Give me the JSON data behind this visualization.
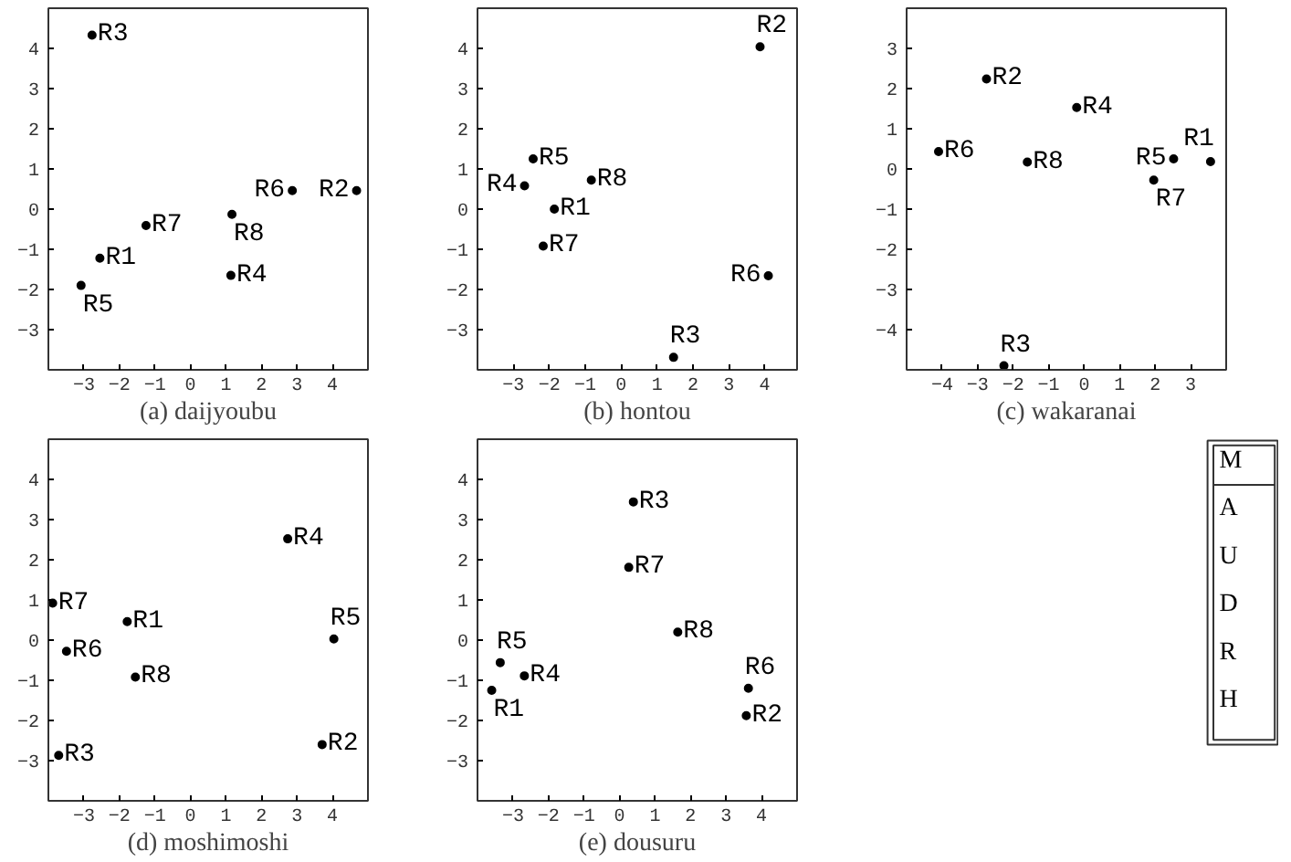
{
  "chart_data": [
    {
      "type": "scatter",
      "xlabel": "(a) daijyoubu",
      "xlim": [
        -4,
        5
      ],
      "ylim": [
        -4,
        5
      ],
      "xticks": [
        -3,
        -2,
        -1,
        0,
        1,
        2,
        3,
        4
      ],
      "yticks": [
        -3,
        -2,
        -1,
        0,
        1,
        2,
        3,
        4
      ],
      "marker": "circle",
      "series": [
        {
          "name": "R1",
          "color": "#000000",
          "x": [
            -2.55
          ],
          "values": [
            -1.22
          ]
        },
        {
          "name": "R2",
          "color": "#000000",
          "x": [
            4.68
          ],
          "values": [
            0.46
          ]
        },
        {
          "name": "R3",
          "color": "#000000",
          "x": [
            -2.77
          ],
          "values": [
            4.33
          ]
        },
        {
          "name": "R4",
          "color": "#000000",
          "x": [
            1.14
          ],
          "values": [
            -1.65
          ]
        },
        {
          "name": "R5",
          "color": "#000000",
          "x": [
            -3.08
          ],
          "values": [
            -1.9
          ]
        },
        {
          "name": "R6",
          "color": "#000000",
          "x": [
            2.87
          ],
          "values": [
            0.46
          ]
        },
        {
          "name": "R7",
          "color": "#000000",
          "x": [
            -1.25
          ],
          "values": [
            -0.41
          ]
        },
        {
          "name": "R8",
          "color": "#000000",
          "x": [
            1.17
          ],
          "values": [
            -0.13
          ]
        }
      ]
    },
    {
      "type": "scatter",
      "xlabel": "(b) hontou",
      "xlim": [
        -4,
        4.9
      ],
      "ylim": [
        -4,
        5
      ],
      "xticks": [
        -3,
        -2,
        -1,
        0,
        1,
        2,
        3,
        4
      ],
      "yticks": [
        -3,
        -2,
        -1,
        0,
        1,
        2,
        3,
        4
      ],
      "marker": "circle",
      "series": [
        {
          "name": "R1",
          "color": "#000000",
          "x": [
            -1.86
          ],
          "values": [
            0.0
          ]
        },
        {
          "name": "R2",
          "color": "#000000",
          "x": [
            3.87
          ],
          "values": [
            4.04
          ]
        },
        {
          "name": "R3",
          "color": "#000000",
          "x": [
            1.46
          ],
          "values": [
            -3.69
          ]
        },
        {
          "name": "R4",
          "color": "#000000",
          "x": [
            -2.69
          ],
          "values": [
            0.58
          ]
        },
        {
          "name": "R5",
          "color": "#000000",
          "x": [
            -2.45
          ],
          "values": [
            1.25
          ]
        },
        {
          "name": "R6",
          "color": "#000000",
          "x": [
            4.1
          ],
          "values": [
            -1.66
          ]
        },
        {
          "name": "R7",
          "color": "#000000",
          "x": [
            -2.17
          ],
          "values": [
            -0.92
          ]
        },
        {
          "name": "R8",
          "color": "#000000",
          "x": [
            -0.83
          ],
          "values": [
            0.72
          ]
        }
      ]
    },
    {
      "type": "scatter",
      "xlabel": "(c) wakaranai",
      "xlim": [
        -5,
        4
      ],
      "ylim": [
        -5,
        4
      ],
      "xticks": [
        -4,
        -3,
        -2,
        -1,
        0,
        1,
        2,
        3
      ],
      "yticks": [
        -4,
        -3,
        -2,
        -1,
        0,
        1,
        2,
        3
      ],
      "marker": "circle",
      "series": [
        {
          "name": "R1",
          "color": "#000000",
          "x": [
            3.56
          ],
          "values": [
            0.18
          ]
        },
        {
          "name": "R2",
          "color": "#000000",
          "x": [
            -2.75
          ],
          "values": [
            2.24
          ]
        },
        {
          "name": "R3",
          "color": "#000000",
          "x": [
            -2.26
          ],
          "values": [
            -4.9
          ]
        },
        {
          "name": "R4",
          "color": "#000000",
          "x": [
            -0.21
          ],
          "values": [
            1.53
          ]
        },
        {
          "name": "R5",
          "color": "#000000",
          "x": [
            2.52
          ],
          "values": [
            0.25
          ]
        },
        {
          "name": "R6",
          "color": "#000000",
          "x": [
            -4.1
          ],
          "values": [
            0.43
          ]
        },
        {
          "name": "R7",
          "color": "#000000",
          "x": [
            1.96
          ],
          "values": [
            -0.28
          ]
        },
        {
          "name": "R8",
          "color": "#000000",
          "x": [
            -1.6
          ],
          "values": [
            0.17
          ]
        }
      ]
    },
    {
      "type": "scatter",
      "xlabel": "(d) moshimoshi",
      "xlim": [
        -4,
        5
      ],
      "ylim": [
        -4,
        5
      ],
      "xticks": [
        -3,
        -2,
        -1,
        0,
        1,
        2,
        3,
        4
      ],
      "yticks": [
        -3,
        -2,
        -1,
        0,
        1,
        2,
        3,
        4
      ],
      "marker": "circle",
      "series": [
        {
          "name": "R1",
          "color": "#000000",
          "x": [
            -1.78
          ],
          "values": [
            0.46
          ]
        },
        {
          "name": "R2",
          "color": "#000000",
          "x": [
            3.71
          ],
          "values": [
            -2.6
          ]
        },
        {
          "name": "R3",
          "color": "#000000",
          "x": [
            -3.71
          ],
          "values": [
            -2.87
          ]
        },
        {
          "name": "R4",
          "color": "#000000",
          "x": [
            2.74
          ],
          "values": [
            2.52
          ]
        },
        {
          "name": "R5",
          "color": "#000000",
          "x": [
            4.04
          ],
          "values": [
            0.03
          ]
        },
        {
          "name": "R6",
          "color": "#000000",
          "x": [
            -3.49
          ],
          "values": [
            -0.28
          ]
        },
        {
          "name": "R7",
          "color": "#000000",
          "x": [
            -3.88
          ],
          "values": [
            0.92
          ]
        },
        {
          "name": "R8",
          "color": "#000000",
          "x": [
            -1.55
          ],
          "values": [
            -0.92
          ]
        }
      ]
    },
    {
      "type": "scatter",
      "xlabel": "(e) dousuru",
      "xlim": [
        -4,
        5
      ],
      "ylim": [
        -4,
        5
      ],
      "xticks": [
        -3,
        -2,
        -1,
        0,
        1,
        2,
        3,
        4
      ],
      "yticks": [
        -3,
        -2,
        -1,
        0,
        1,
        2,
        3,
        4
      ],
      "marker": "circle",
      "series": [
        {
          "name": "R1",
          "color": "#000000",
          "x": [
            -3.6
          ],
          "values": [
            -1.25
          ]
        },
        {
          "name": "R2",
          "color": "#000000",
          "x": [
            3.57
          ],
          "values": [
            -1.88
          ]
        },
        {
          "name": "R3",
          "color": "#000000",
          "x": [
            0.39
          ],
          "values": [
            3.44
          ]
        },
        {
          "name": "R4",
          "color": "#000000",
          "x": [
            -2.68
          ],
          "values": [
            -0.89
          ]
        },
        {
          "name": "R5",
          "color": "#000000",
          "x": [
            -3.36
          ],
          "values": [
            -0.56
          ]
        },
        {
          "name": "R6",
          "color": "#000000",
          "x": [
            3.63
          ],
          "values": [
            -1.2
          ]
        },
        {
          "name": "R7",
          "color": "#000000",
          "x": [
            0.26
          ],
          "values": [
            1.81
          ]
        },
        {
          "name": "R8",
          "color": "#000000",
          "x": [
            1.64
          ],
          "values": [
            0.2
          ]
        }
      ]
    },
    {
      "type": "other",
      "annotations": [
        "M",
        "A",
        "U",
        "D",
        "R",
        "H"
      ]
    }
  ]
}
